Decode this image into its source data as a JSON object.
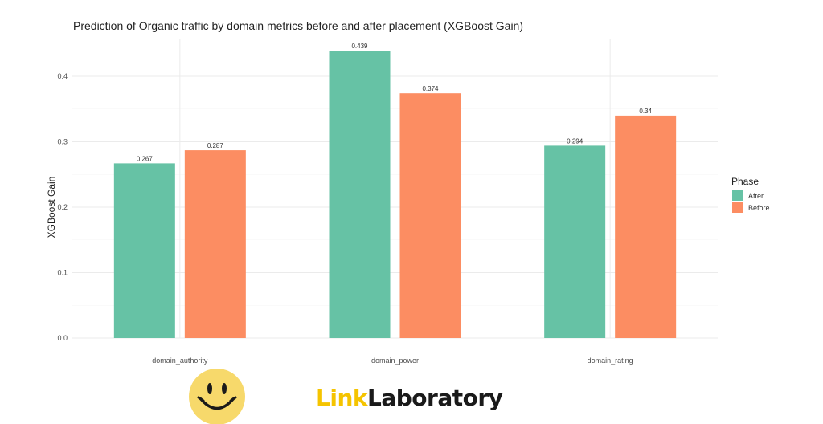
{
  "chart_data": {
    "type": "bar",
    "title": "Prediction of Organic traffic by domain metrics before and after placement (XGBoost Gain)",
    "xlabel": "",
    "ylabel": "XGBoost Gain",
    "categories": [
      "domain_authority",
      "domain_power",
      "domain_rating"
    ],
    "series": [
      {
        "name": "After",
        "values": [
          0.267,
          0.439,
          0.294
        ],
        "labels": [
          "0.267",
          "0.439",
          "0.294"
        ],
        "color": "#66c2a5"
      },
      {
        "name": "Before",
        "values": [
          0.287,
          0.374,
          0.34
        ],
        "labels": [
          "0.287",
          "0.374",
          "0.34"
        ],
        "color": "#fc8d62"
      }
    ],
    "ylim": [
      0,
      0.45
    ],
    "yticks": [
      0.0,
      0.1,
      0.2,
      0.3,
      0.4
    ],
    "ytick_labels": [
      "0.0",
      "0.1",
      "0.2",
      "0.3",
      "0.4"
    ],
    "grid": true,
    "legend": {
      "title": "Phase",
      "placement": "right"
    }
  },
  "brand": {
    "logo_accent": "Link",
    "logo_rest": "Laboratory",
    "accent_color": "#f5c400",
    "smiley_icon": "smiley-face-icon"
  }
}
